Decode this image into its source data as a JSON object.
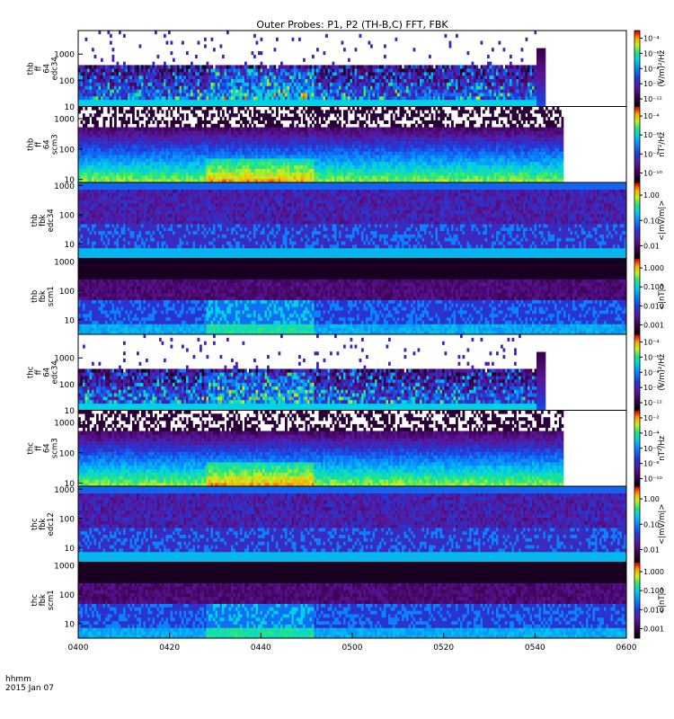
{
  "title": "Outer Probes: P1, P2 (TH-B,C) FFT, FBK",
  "footer": {
    "label": "hhmm",
    "date": "2015 Jan 07"
  },
  "chart_data": {
    "type": "heatmap",
    "x": {
      "ticks": [
        "0400",
        "0420",
        "0440",
        "0500",
        "0520",
        "0540",
        "0600"
      ],
      "range": [
        "04:00",
        "06:00"
      ]
    },
    "panels": [
      {
        "id": "thb-ff-e34",
        "ylabel": [
          "thb",
          "ff",
          "64",
          "edc34"
        ],
        "yticks": [
          "10",
          "100",
          "1000"
        ],
        "ylog": [
          1,
          3.9
        ],
        "data_end": 5.0,
        "tail_end": 5.1,
        "cbar_label": "(V/m)²/Hz",
        "cbar_ticks": [
          "10⁻¹²",
          "10⁻¹⁰",
          "10⁻⁸",
          "10⁻⁶",
          "10⁻⁴"
        ],
        "profile": "fft_e"
      },
      {
        "id": "thb-ff-scm3",
        "ylabel": [
          "thb",
          "ff",
          "64",
          "scm3"
        ],
        "yticks": [
          "10",
          "100",
          "1000"
        ],
        "ylog": [
          0.9,
          3.4
        ],
        "data_end": 5.3,
        "tail_end": 5.3,
        "cbar_label": "nT²/Hz",
        "cbar_ticks": [
          "10⁻¹⁰",
          "10⁻⁸",
          "10⁻⁶",
          "10⁻⁴"
        ],
        "profile": "fft_b"
      },
      {
        "id": "thb-fbk-edc34",
        "ylabel": [
          "thb",
          "fbk",
          "edc34"
        ],
        "yticks": [
          "10",
          "100",
          "1000"
        ],
        "ylog": [
          0.5,
          3.1
        ],
        "data_end": 12,
        "cbar_label": "<|mV/m|>",
        "cbar_ticks": [
          "0.01",
          "0.10",
          "1.00"
        ],
        "profile": "fbk_e"
      },
      {
        "id": "thb-fbk-scm1",
        "ylabel": [
          "thb",
          "fbk",
          "scm1"
        ],
        "yticks": [
          "10",
          "100",
          "1000"
        ],
        "ylog": [
          0.5,
          3.1
        ],
        "data_end": 12,
        "cbar_label": "<|nT|>",
        "cbar_ticks": [
          "0.001",
          "0.010",
          "0.100",
          "1.000"
        ],
        "profile": "fbk_b"
      },
      {
        "id": "thc-ff-e34",
        "ylabel": [
          "thc",
          "ff",
          "64",
          "edc34"
        ],
        "yticks": [
          "10",
          "100",
          "1000"
        ],
        "ylog": [
          1,
          3.9
        ],
        "data_end": 5.0,
        "tail_end": 5.1,
        "cbar_label": "(V/m)²/Hz",
        "cbar_ticks": [
          "10⁻¹²",
          "10⁻¹⁰",
          "10⁻⁸",
          "10⁻⁶",
          "10⁻⁴"
        ],
        "profile": "fft_e"
      },
      {
        "id": "thc-ff-scm3",
        "ylabel": [
          "thc",
          "ff",
          "64",
          "scm3"
        ],
        "yticks": [
          "10",
          "100",
          "1000"
        ],
        "ylog": [
          0.9,
          3.4
        ],
        "data_end": 5.3,
        "tail_end": 5.3,
        "cbar_label": "nT²/Hz",
        "cbar_ticks": [
          "10⁻¹⁰",
          "10⁻⁸",
          "10⁻⁶",
          "10⁻⁴",
          "10⁻²"
        ],
        "profile": "fft_b"
      },
      {
        "id": "thc-fbk-edc12",
        "ylabel": [
          "thc",
          "fbk",
          "edc12"
        ],
        "yticks": [
          "10",
          "100",
          "1000"
        ],
        "ylog": [
          0.5,
          3.1
        ],
        "data_end": 12,
        "cbar_label": "<|mV/m|>",
        "cbar_ticks": [
          "0.01",
          "0.10",
          "1.00"
        ],
        "profile": "fbk_e"
      },
      {
        "id": "thc-fbk-scm1",
        "ylabel": [
          "thc",
          "fbk",
          "scm1"
        ],
        "yticks": [
          "10",
          "100",
          "1000"
        ],
        "ylog": [
          0.5,
          3.1
        ],
        "data_end": 12,
        "cbar_label": "<|nT|>",
        "cbar_ticks": [
          "0.001",
          "0.010",
          "0.100",
          "1.000"
        ],
        "profile": "fbk_b"
      }
    ]
  }
}
